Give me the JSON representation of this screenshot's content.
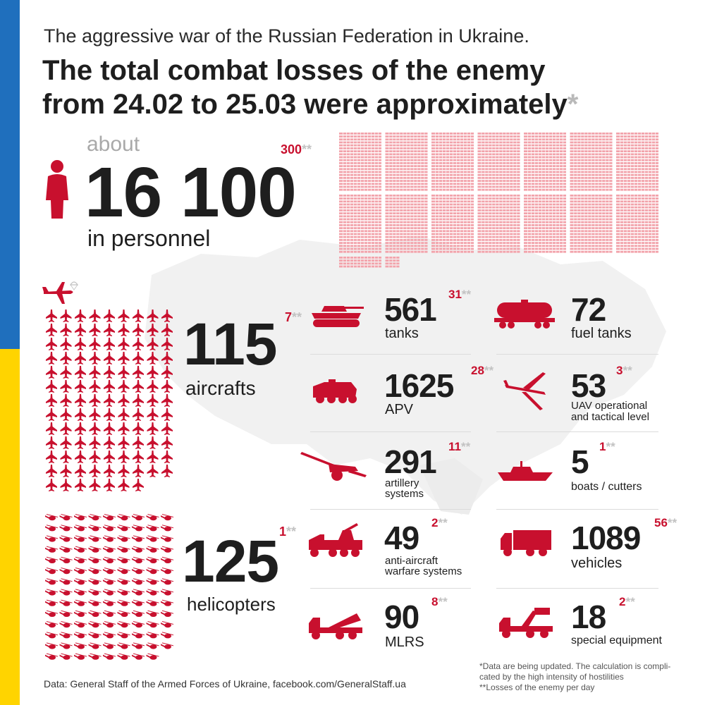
{
  "header": {
    "subtitle": "The aggressive war of the Russian Federation in Ukraine.",
    "title_line1": "The total combat losses of the enemy",
    "title_line2": "from 24.02 to 25.03 were approximately",
    "title_asterisk": "*"
  },
  "personnel": {
    "prefix": "about",
    "value": "16 100",
    "daily": "300",
    "daily_mark": "**",
    "label": "in personnel",
    "icon": "person-icon"
  },
  "aircrafts": {
    "value": "115",
    "daily": "7",
    "daily_mark": "**",
    "label": "aircrafts",
    "icon": "airplane-icon",
    "grid_count": 115
  },
  "helicopters": {
    "value": "125",
    "daily": "1",
    "daily_mark": "**",
    "label": "helicopters",
    "icon": "helicopter-icon",
    "grid_count": 125
  },
  "equipment": [
    {
      "value": "561",
      "daily": "31",
      "daily_mark": "**",
      "label_lines": [
        "tanks"
      ],
      "icon": "tank-icon"
    },
    {
      "value": "72",
      "daily": "",
      "daily_mark": "",
      "label_lines": [
        "fuel tanks"
      ],
      "icon": "fuel-tank-icon"
    },
    {
      "value": "1625",
      "daily": "28",
      "daily_mark": "**",
      "label_lines": [
        "APV"
      ],
      "icon": "apv-icon"
    },
    {
      "value": "53",
      "daily": "3",
      "daily_mark": "**",
      "label_lines": [
        "UAV operational",
        "and tactical level"
      ],
      "icon": "uav-icon"
    },
    {
      "value": "291",
      "daily": "11",
      "daily_mark": "**",
      "label_lines": [
        "artillery",
        "systems"
      ],
      "icon": "artillery-icon"
    },
    {
      "value": "5",
      "daily": "1",
      "daily_mark": "**",
      "label_lines": [
        "boats / cutters"
      ],
      "icon": "boat-icon"
    },
    {
      "value": "49",
      "daily": "2",
      "daily_mark": "**",
      "label_lines": [
        "anti-aircraft",
        "warfare systems"
      ],
      "icon": "anti-aircraft-icon"
    },
    {
      "value": "1089",
      "daily": "56",
      "daily_mark": "**",
      "label_lines": [
        "vehicles"
      ],
      "icon": "truck-icon"
    },
    {
      "value": "90",
      "daily": "8",
      "daily_mark": "**",
      "label_lines": [
        "MLRS"
      ],
      "icon": "mlrs-icon"
    },
    {
      "value": "18",
      "daily": "2",
      "daily_mark": "**",
      "label_lines": [
        "special equipment"
      ],
      "icon": "special-equipment-icon"
    }
  ],
  "footer": {
    "source": "Data: General Staff of the Armed Forces of Ukraine, facebook.com/GeneralStaff.ua",
    "note1": "*Data are being updated. The calculation is compli-",
    "note2": "cated by the high intensity of hostilities",
    "note3": "**Losses of the enemy per day"
  },
  "colors": {
    "red": "#c8102e",
    "light_red": "#f2a3ab",
    "blue": "#1f6fbd",
    "yellow": "#ffd400",
    "grey": "#c2c2c2"
  }
}
